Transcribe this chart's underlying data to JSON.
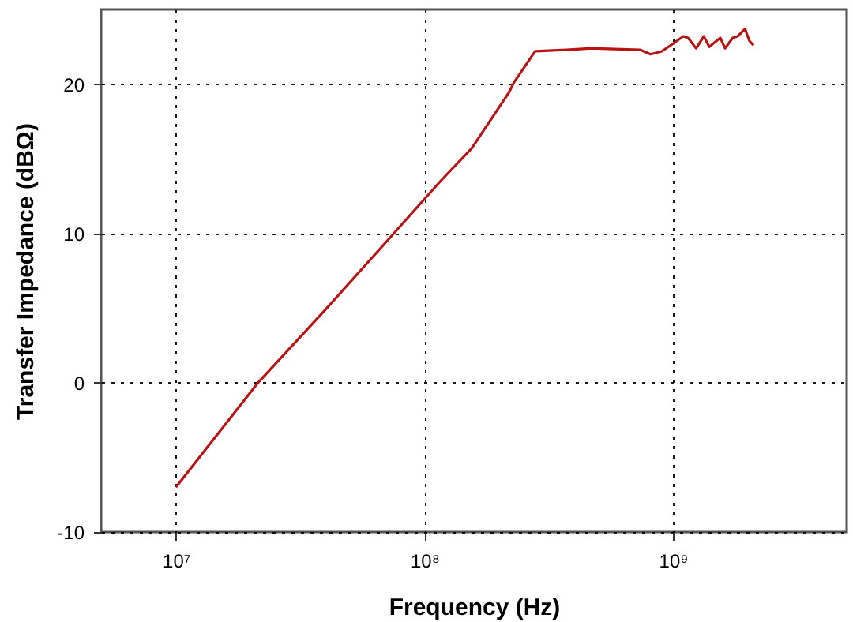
{
  "chart_data": {
    "type": "line",
    "xlabel": "Frequency (Hz)",
    "ylabel": "Transfer Impedance (dBΩ)",
    "x": [
      10000000.0,
      21400000.0,
      40000000.0,
      75300000.0,
      100000000.0,
      116000000.0,
      155000000.0,
      218000000.0,
      229000000.0,
      279000000.0,
      372000000.0,
      475000000.0,
      738000000.0,
      813000000.0,
      902000000.0,
      1000000000.0,
      1100000000.0,
      1150000000.0,
      1240000000.0,
      1330000000.0,
      1400000000.0,
      1550000000.0,
      1620000000.0,
      1740000000.0,
      1820000000.0,
      1950000000.0,
      2030000000.0,
      2110000000.0
    ],
    "series": [
      {
        "color": "#b81414",
        "values": [
          -7.0,
          0,
          4.9,
          10,
          12.3,
          13.5,
          15.7,
          19.4,
          20.1,
          22.2,
          22.3,
          22.4,
          22.3,
          22.0,
          22.2,
          22.7,
          23.2,
          23.1,
          22.4,
          23.2,
          22.5,
          23.1,
          22.4,
          23.1,
          23.2,
          23.7,
          22.9,
          22.6
        ]
      }
    ],
    "log": "x",
    "xlim": [
      5000000.0,
      5000000000.0
    ],
    "xticks": [
      {
        "value": 10000000.0,
        "label": "10⁷"
      },
      {
        "value": 100000000.0,
        "label": "10⁸"
      },
      {
        "value": 1000000000.0,
        "label": "10⁹"
      }
    ],
    "ylim": [
      -10,
      25
    ],
    "yticks": [
      -10,
      0,
      10,
      20
    ],
    "grid": true,
    "marker": "none",
    "line_style": "solid"
  }
}
